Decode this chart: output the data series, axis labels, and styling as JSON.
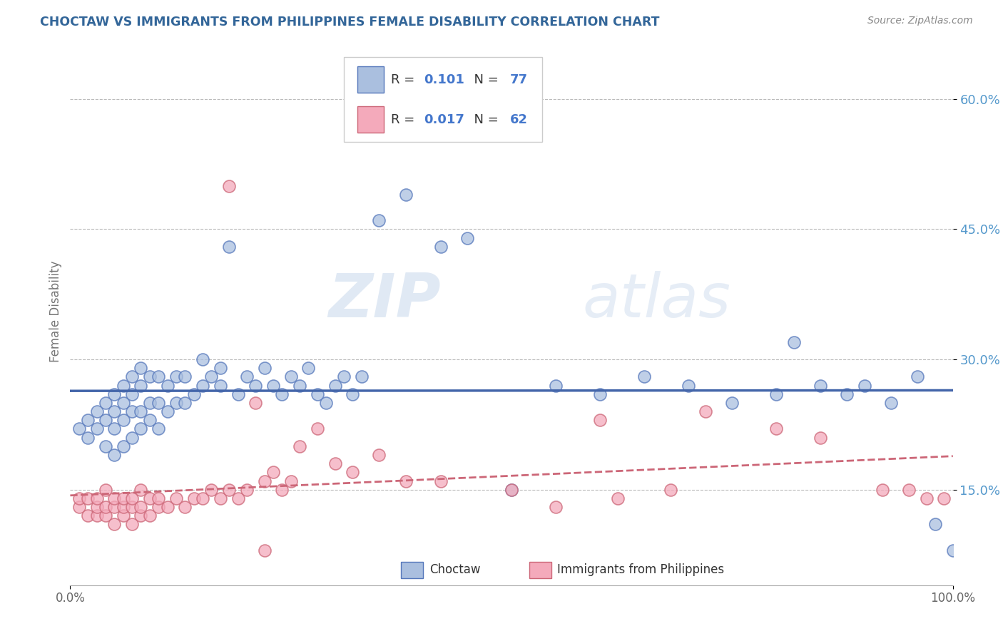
{
  "title": "CHOCTAW VS IMMIGRANTS FROM PHILIPPINES FEMALE DISABILITY CORRELATION CHART",
  "source": "Source: ZipAtlas.com",
  "ylabel": "Female Disability",
  "yticks": [
    0.15,
    0.3,
    0.45,
    0.6
  ],
  "ytick_labels": [
    "15.0%",
    "30.0%",
    "45.0%",
    "60.0%"
  ],
  "xlim": [
    0.0,
    1.0
  ],
  "ylim": [
    0.04,
    0.67
  ],
  "legend1_R": "0.101",
  "legend1_N": "77",
  "legend2_R": "0.017",
  "legend2_N": "62",
  "blue_fill": "#AABFDF",
  "blue_edge": "#5577BB",
  "pink_fill": "#F4AABB",
  "pink_edge": "#CC6677",
  "blue_line_color": "#4466AA",
  "pink_line_color": "#DD5577",
  "watermark_zip": "ZIP",
  "watermark_atlas": "atlas",
  "bg_color": "#FFFFFF",
  "title_color": "#336699",
  "source_color": "#888888",
  "ylabel_color": "#777777",
  "tick_color_right": "#5599CC",
  "grid_color": "#BBBBBB",
  "choctaw_x": [
    0.01,
    0.02,
    0.02,
    0.03,
    0.03,
    0.04,
    0.04,
    0.04,
    0.05,
    0.05,
    0.05,
    0.05,
    0.06,
    0.06,
    0.06,
    0.06,
    0.07,
    0.07,
    0.07,
    0.07,
    0.08,
    0.08,
    0.08,
    0.08,
    0.09,
    0.09,
    0.09,
    0.1,
    0.1,
    0.1,
    0.11,
    0.11,
    0.12,
    0.12,
    0.13,
    0.13,
    0.14,
    0.15,
    0.15,
    0.16,
    0.17,
    0.17,
    0.18,
    0.19,
    0.2,
    0.21,
    0.22,
    0.23,
    0.24,
    0.25,
    0.26,
    0.27,
    0.28,
    0.29,
    0.3,
    0.31,
    0.32,
    0.33,
    0.35,
    0.38,
    0.42,
    0.45,
    0.5,
    0.55,
    0.6,
    0.65,
    0.7,
    0.75,
    0.8,
    0.82,
    0.85,
    0.88,
    0.9,
    0.93,
    0.96,
    0.98,
    1.0
  ],
  "choctaw_y": [
    0.22,
    0.23,
    0.21,
    0.22,
    0.24,
    0.2,
    0.23,
    0.25,
    0.19,
    0.22,
    0.24,
    0.26,
    0.2,
    0.23,
    0.25,
    0.27,
    0.21,
    0.24,
    0.26,
    0.28,
    0.22,
    0.24,
    0.27,
    0.29,
    0.23,
    0.25,
    0.28,
    0.22,
    0.25,
    0.28,
    0.24,
    0.27,
    0.25,
    0.28,
    0.25,
    0.28,
    0.26,
    0.27,
    0.3,
    0.28,
    0.29,
    0.27,
    0.43,
    0.26,
    0.28,
    0.27,
    0.29,
    0.27,
    0.26,
    0.28,
    0.27,
    0.29,
    0.26,
    0.25,
    0.27,
    0.28,
    0.26,
    0.28,
    0.46,
    0.49,
    0.43,
    0.44,
    0.15,
    0.27,
    0.26,
    0.28,
    0.27,
    0.25,
    0.26,
    0.32,
    0.27,
    0.26,
    0.27,
    0.25,
    0.28,
    0.11,
    0.08
  ],
  "phil_x": [
    0.01,
    0.01,
    0.02,
    0.02,
    0.03,
    0.03,
    0.03,
    0.04,
    0.04,
    0.04,
    0.05,
    0.05,
    0.05,
    0.06,
    0.06,
    0.06,
    0.07,
    0.07,
    0.07,
    0.08,
    0.08,
    0.08,
    0.09,
    0.09,
    0.1,
    0.1,
    0.11,
    0.12,
    0.13,
    0.14,
    0.15,
    0.16,
    0.17,
    0.18,
    0.19,
    0.2,
    0.21,
    0.22,
    0.23,
    0.24,
    0.25,
    0.26,
    0.28,
    0.3,
    0.32,
    0.35,
    0.38,
    0.42,
    0.5,
    0.55,
    0.6,
    0.62,
    0.68,
    0.72,
    0.8,
    0.85,
    0.92,
    0.95,
    0.97,
    0.99,
    0.18,
    0.22
  ],
  "phil_y": [
    0.13,
    0.14,
    0.12,
    0.14,
    0.12,
    0.13,
    0.14,
    0.12,
    0.13,
    0.15,
    0.11,
    0.13,
    0.14,
    0.12,
    0.13,
    0.14,
    0.11,
    0.13,
    0.14,
    0.12,
    0.13,
    0.15,
    0.12,
    0.14,
    0.13,
    0.14,
    0.13,
    0.14,
    0.13,
    0.14,
    0.14,
    0.15,
    0.14,
    0.15,
    0.14,
    0.15,
    0.25,
    0.16,
    0.17,
    0.15,
    0.16,
    0.2,
    0.22,
    0.18,
    0.17,
    0.19,
    0.16,
    0.16,
    0.15,
    0.13,
    0.23,
    0.14,
    0.15,
    0.24,
    0.22,
    0.21,
    0.15,
    0.15,
    0.14,
    0.14,
    0.5,
    0.08
  ]
}
